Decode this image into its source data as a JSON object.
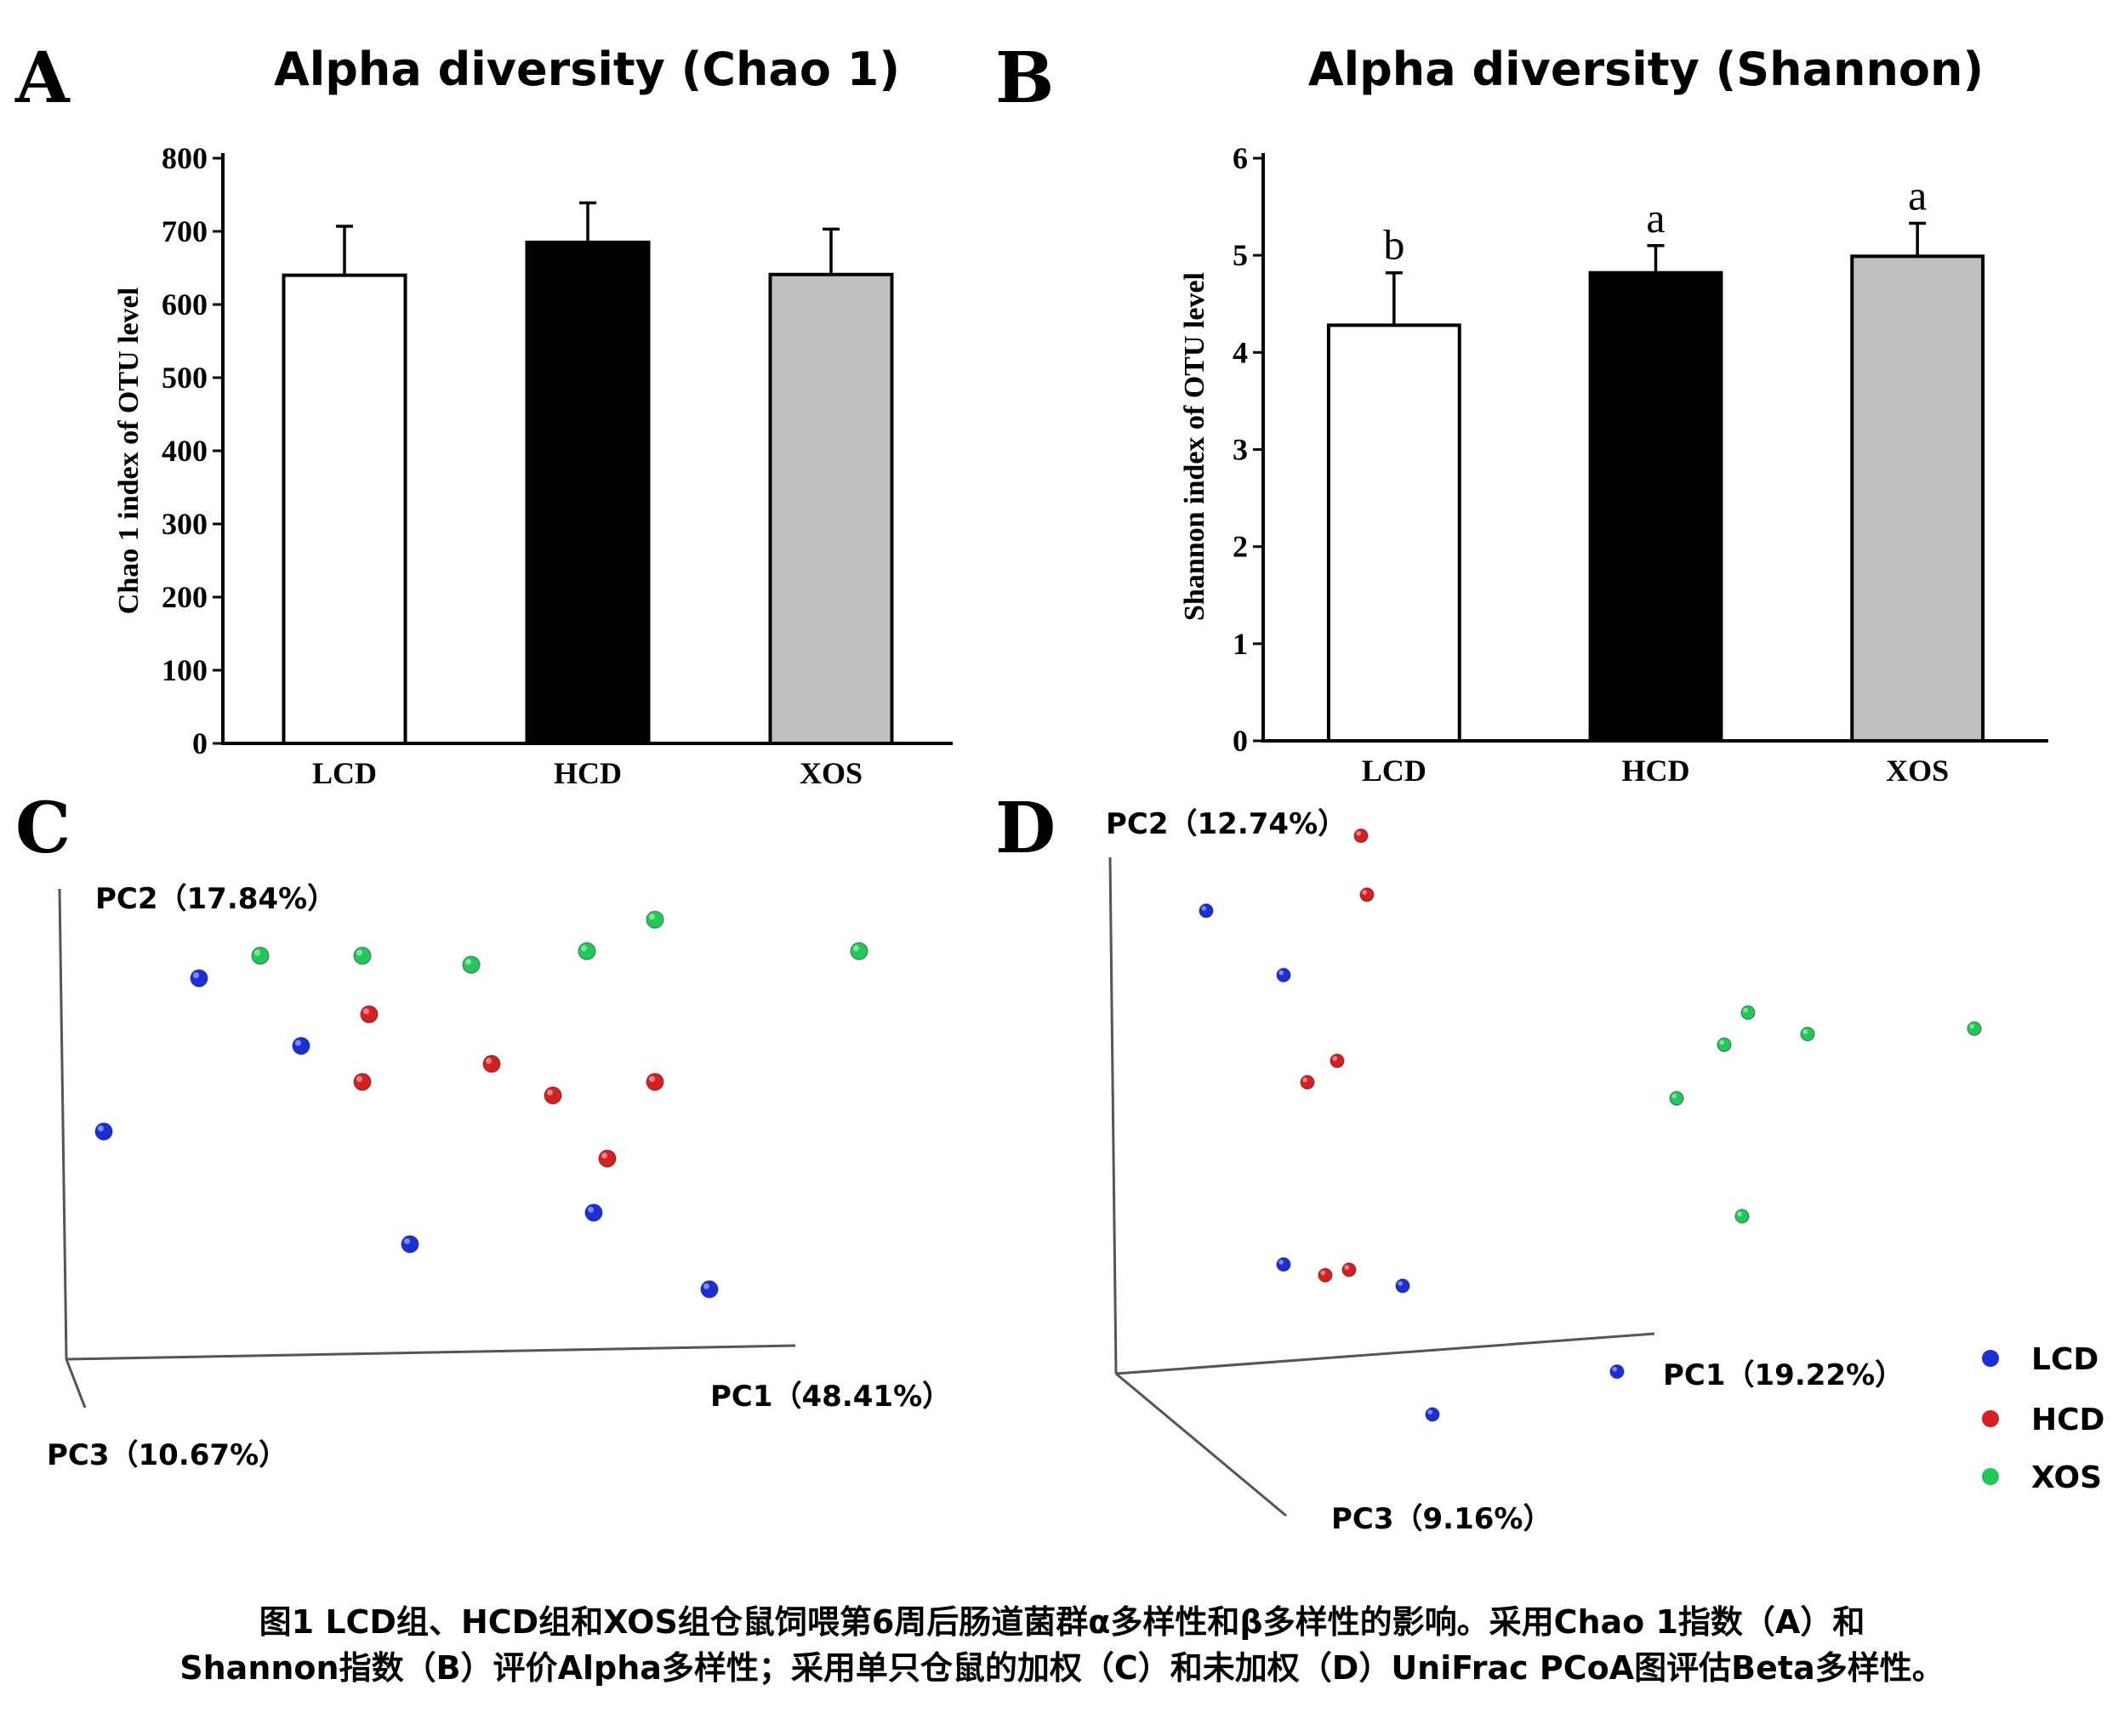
{
  "chart_data": [
    {
      "panel": "A",
      "type": "bar",
      "title": "Alpha diversity (Chao 1)",
      "ylabel": "Chao 1 index of OTU level",
      "xlabel": "",
      "ylim": [
        0,
        800
      ],
      "yticks": [
        "0",
        "100",
        "200",
        "300",
        "400",
        "500",
        "600",
        "700",
        "800"
      ],
      "categories": [
        "LCD",
        "HCD",
        "XOS"
      ],
      "values": [
        640,
        685,
        641
      ],
      "errors": [
        67,
        54,
        62
      ],
      "bar_colors": [
        "#ffffff",
        "#000000",
        "#c0c0c0"
      ],
      "significance": [
        "",
        "",
        ""
      ]
    },
    {
      "panel": "B",
      "type": "bar",
      "title": "Alpha diversity (Shannon)",
      "ylabel": "Shannon index of OTU level",
      "xlabel": "",
      "ylim": [
        0,
        6
      ],
      "yticks": [
        "0",
        "1",
        "2",
        "3",
        "4",
        "5",
        "6"
      ],
      "categories": [
        "LCD",
        "HCD",
        "XOS"
      ],
      "values": [
        4.28,
        4.82,
        4.99
      ],
      "errors": [
        0.54,
        0.28,
        0.34
      ],
      "bar_colors": [
        "#ffffff",
        "#000000",
        "#c0c0c0"
      ],
      "significance": [
        "b",
        "a",
        "a"
      ]
    },
    {
      "panel": "C",
      "type": "scatter",
      "subtype": "3D PCoA",
      "axis_labels": {
        "x": "PC1（48.41%）",
        "y": "PC2（17.84%）",
        "z": "PC3（10.67%）"
      },
      "series": [
        {
          "name": "LCD",
          "color": "#1a2fd6",
          "points": [
            [
              0.18,
              0.83
            ],
            [
              0.04,
              0.49
            ],
            [
              0.33,
              0.68
            ],
            [
              0.49,
              0.24
            ],
            [
              0.76,
              0.31
            ],
            [
              0.93,
              0.14
            ]
          ]
        },
        {
          "name": "HCD",
          "color": "#d42020",
          "points": [
            [
              0.43,
              0.75
            ],
            [
              0.42,
              0.6
            ],
            [
              0.61,
              0.64
            ],
            [
              0.7,
              0.57
            ],
            [
              0.85,
              0.6
            ],
            [
              0.78,
              0.43
            ]
          ]
        },
        {
          "name": "XOS",
          "color": "#22c85a",
          "points": [
            [
              0.27,
              0.88
            ],
            [
              0.42,
              0.88
            ],
            [
              0.58,
              0.86
            ],
            [
              0.75,
              0.89
            ],
            [
              0.85,
              0.96
            ],
            [
              1.15,
              0.89
            ]
          ]
        }
      ]
    },
    {
      "panel": "D",
      "type": "scatter",
      "subtype": "3D PCoA",
      "axis_labels": {
        "x": "PC1（19.22%）",
        "y": "PC2（12.74%）",
        "z": "PC3（9.16%）"
      },
      "legend": [
        "LCD",
        "HCD",
        "XOS"
      ],
      "legend_position": "right",
      "series": [
        {
          "name": "LCD",
          "color": "#1a2fd6",
          "points": [
            [
              0.14,
              0.84
            ],
            [
              0.27,
              0.72
            ],
            [
              0.27,
              0.18
            ],
            [
              0.47,
              0.14
            ],
            [
              0.83,
              -0.02
            ],
            [
              0.52,
              -0.1
            ]
          ]
        },
        {
          "name": "HCD",
          "color": "#d42020",
          "points": [
            [
              0.4,
              0.98
            ],
            [
              0.41,
              0.87
            ],
            [
              0.36,
              0.56
            ],
            [
              0.31,
              0.52
            ],
            [
              0.34,
              0.16
            ],
            [
              0.38,
              0.17
            ]
          ]
        },
        {
          "name": "XOS",
          "color": "#22c85a",
          "points": [
            [
              1.05,
              0.65
            ],
            [
              1.15,
              0.61
            ],
            [
              1.01,
              0.59
            ],
            [
              1.43,
              0.62
            ],
            [
              0.93,
              0.49
            ],
            [
              1.04,
              0.27
            ]
          ]
        }
      ]
    }
  ],
  "caption": {
    "line1": "图1  LCD组、HCD组和XOS组仓鼠饲喂第6周后肠道菌群α多样性和β多样性的影响。采用Chao 1指数（A）和",
    "line2": "Shannon指数（B）评价Alpha多样性；采用单只仓鼠的加权（C）和未加权（D）UniFrac PCoA图评估Beta多样性。"
  }
}
